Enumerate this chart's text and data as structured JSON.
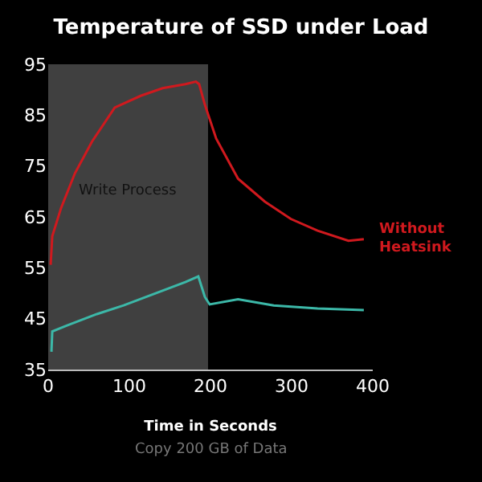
{
  "chart_data": {
    "type": "line",
    "title": "Temperature of SSD under Load",
    "xlabel": "Time in Seconds",
    "xlim": [
      0,
      400
    ],
    "xticks": [
      0,
      100,
      200,
      300,
      400
    ],
    "ylim": [
      35,
      95
    ],
    "yticks": [
      35,
      45,
      55,
      65,
      75,
      85,
      95
    ],
    "grid": false,
    "legend": false,
    "marker": "none",
    "line_style": "solid",
    "bands": [
      {
        "axis": "x",
        "from": 0,
        "to": 197,
        "label": "Write Process",
        "color": "#404040"
      }
    ],
    "annotations": [
      "Copy 200 GB of Data"
    ],
    "series": [
      {
        "name": "Without Heatsink",
        "color": "#d0191e",
        "x": [
          3,
          5,
          16,
          33,
          54,
          82,
          114,
          141,
          169,
          182,
          186,
          193,
          207,
          234,
          267,
          299,
          332,
          370,
          389
        ],
        "values": [
          55.6,
          61.2,
          66.8,
          73.6,
          79.8,
          86.5,
          88.8,
          90.3,
          91.1,
          91.6,
          91.1,
          87.1,
          80.4,
          72.5,
          68,
          64.6,
          62.3,
          60.3,
          60.6
        ]
      },
      {
        "color": "#3cb8a8",
        "x": [
          4,
          5,
          22,
          60,
          93,
          131,
          169,
          185,
          193,
          199,
          234,
          278,
          332,
          389
        ],
        "values": [
          38.5,
          42.5,
          43.6,
          45.9,
          47.6,
          49.9,
          52.2,
          53.3,
          49.3,
          47.8,
          48.8,
          47.6,
          47,
          46.7
        ]
      }
    ]
  }
}
